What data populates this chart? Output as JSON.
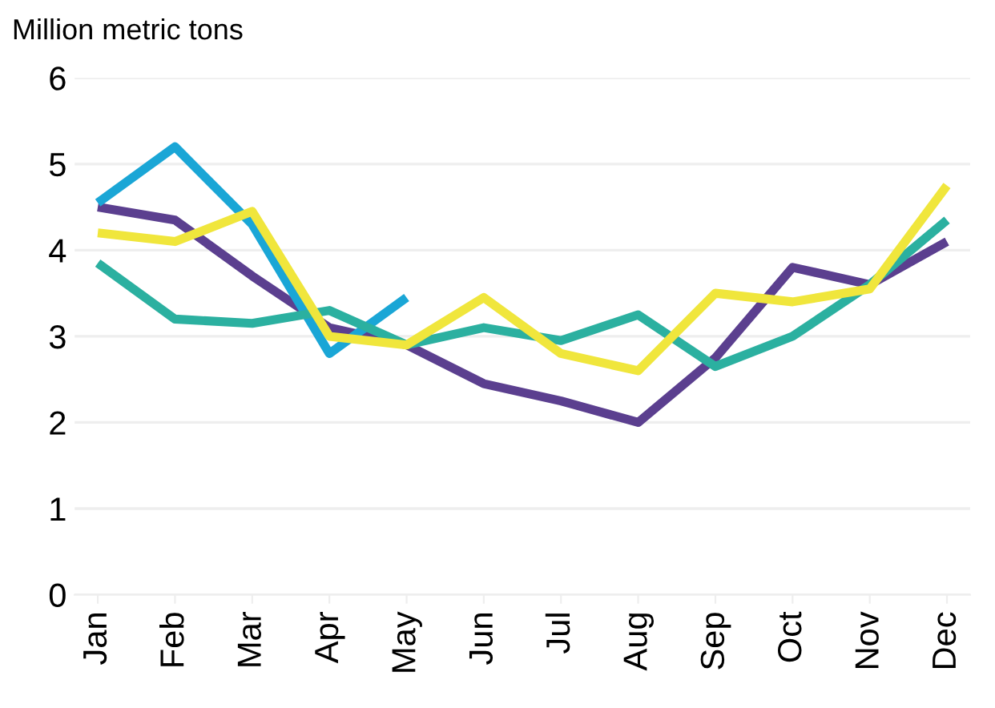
{
  "chart_data": {
    "type": "line",
    "ylabel": "Million metric tons",
    "categories": [
      "Jan",
      "Feb",
      "Mar",
      "Apr",
      "May",
      "Jun",
      "Jul",
      "Aug",
      "Sep",
      "Oct",
      "Nov",
      "Dec"
    ],
    "series": [
      {
        "color": "#5b3f8f",
        "values": [
          4.5,
          4.35,
          3.7,
          3.1,
          2.9,
          2.45,
          2.25,
          2.0,
          2.75,
          3.8,
          3.6,
          4.1
        ]
      },
      {
        "color": "#1aa6d6",
        "values": [
          4.55,
          5.2,
          4.3,
          2.8,
          3.45,
          null,
          null,
          null,
          null,
          null,
          null,
          null
        ]
      },
      {
        "color": "#2bb0a0",
        "values": [
          3.85,
          3.2,
          3.15,
          3.3,
          2.9,
          3.1,
          2.95,
          3.25,
          2.65,
          3.0,
          3.6,
          4.35
        ]
      },
      {
        "color": "#f0e63c",
        "values": [
          4.2,
          4.1,
          4.45,
          3.0,
          2.9,
          3.45,
          2.8,
          2.6,
          3.5,
          3.4,
          3.55,
          4.75
        ]
      }
    ],
    "ylim": [
      0,
      6
    ],
    "yticks": [
      0,
      1,
      2,
      3,
      4,
      5,
      6
    ],
    "grid": "y",
    "legend": false,
    "marker": "none",
    "line_style": "solid"
  }
}
